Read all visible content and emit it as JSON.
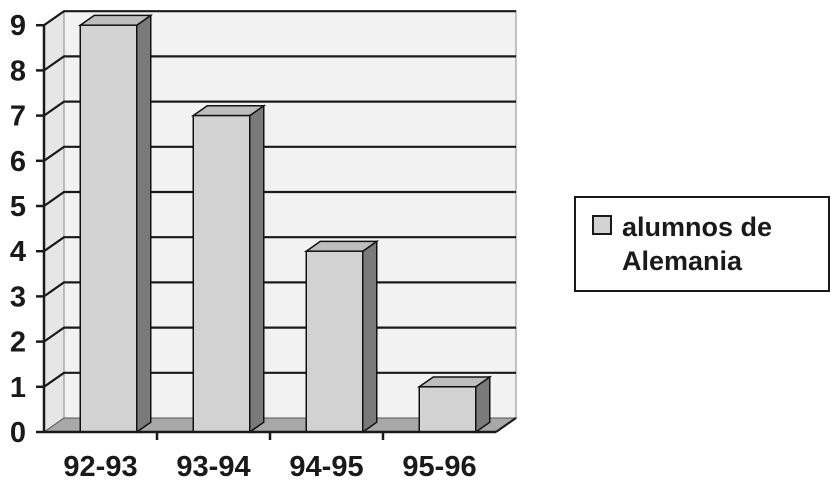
{
  "chart_data": {
    "type": "bar",
    "style": "3d-column",
    "categories": [
      "92-93",
      "93-94",
      "94-95",
      "95-96"
    ],
    "series": [
      {
        "name": "alumnos de Alemania",
        "values": [
          9,
          7,
          4,
          1
        ]
      }
    ],
    "yticks": [
      "0",
      "1",
      "2",
      "3",
      "4",
      "5",
      "6",
      "7",
      "8",
      "9"
    ],
    "ylim": [
      0,
      9
    ],
    "grid": true,
    "legend_position": "right",
    "colors": {
      "bar_front": "#d2d2d2",
      "bar_side": "#7a7a7a",
      "bar_top": "#bdbdbd",
      "wall": "#f2f2f2",
      "floor": "#a8a8a8",
      "gridline": "#1a1a1a",
      "axis": "#1a1a1a"
    }
  }
}
